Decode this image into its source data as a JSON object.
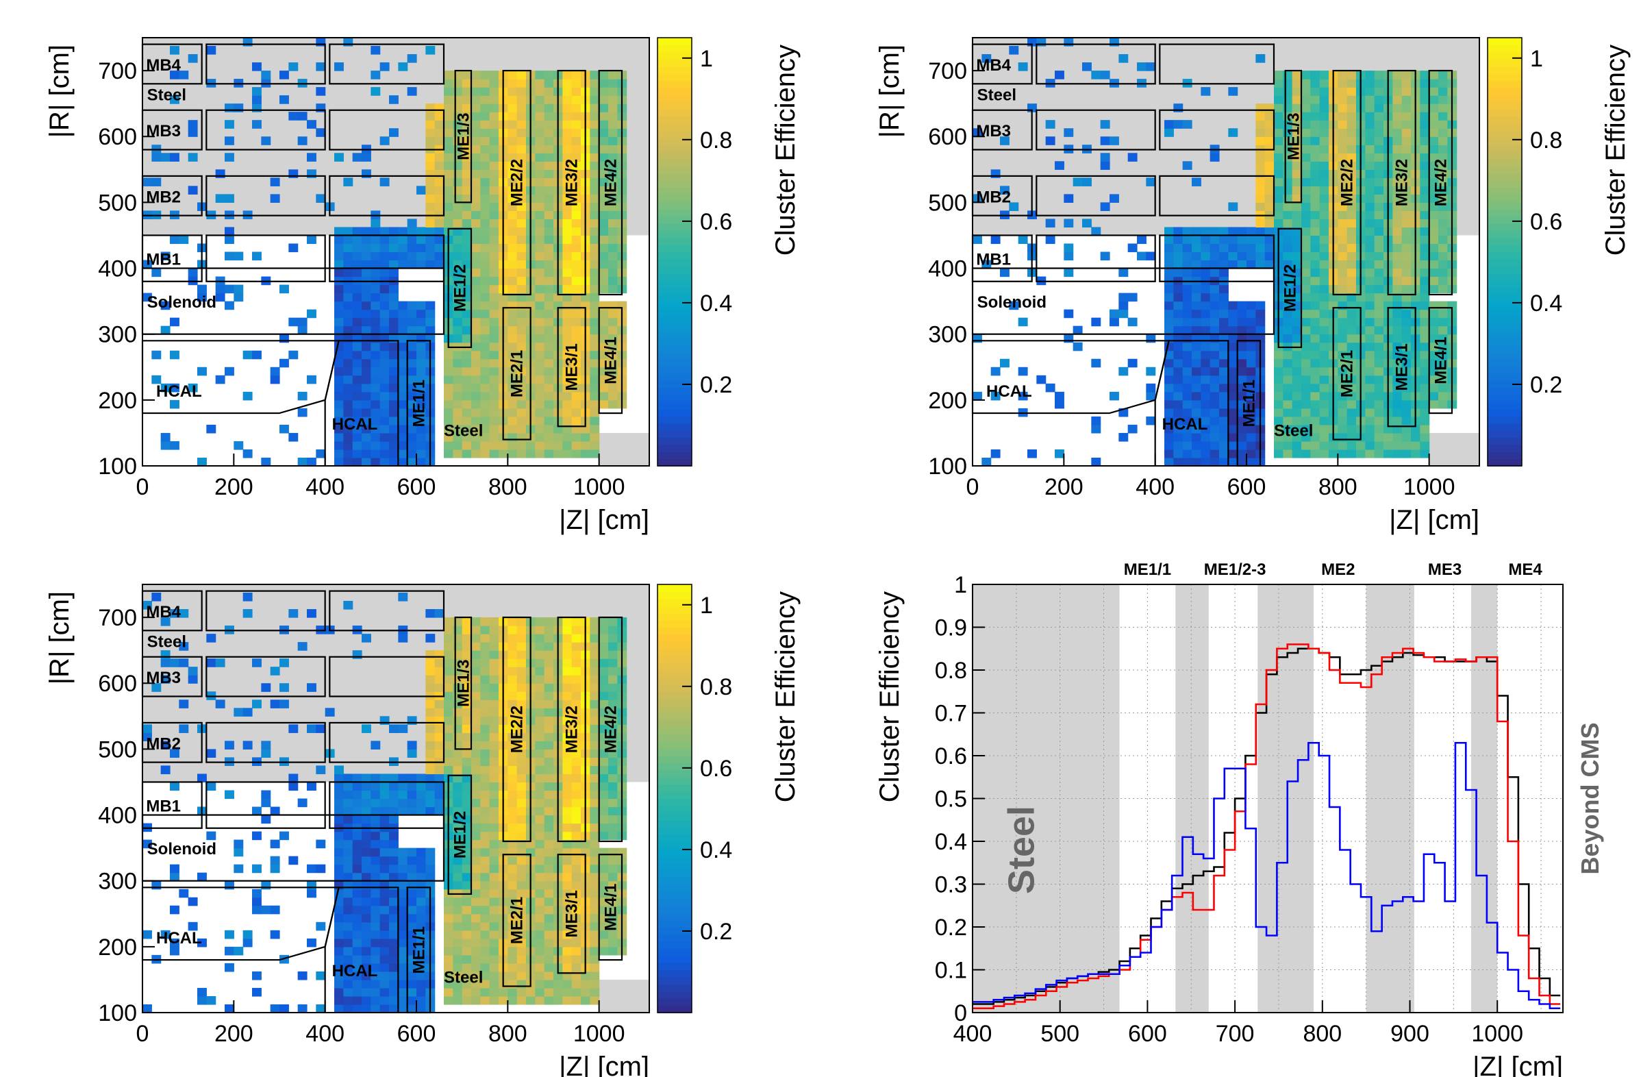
{
  "chart_data": [
    {
      "type": "heatmap",
      "xlabel": "|Z| [cm]",
      "ylabel": "|R| [cm]",
      "zlabel": "Cluster Efficiency",
      "xlim": [
        0,
        1110
      ],
      "ylim": [
        100,
        750
      ],
      "zlim": [
        0,
        1.05
      ],
      "xticks": [
        "0",
        "200",
        "400",
        "600",
        "800",
        "1000"
      ],
      "yticks": [
        "100",
        "200",
        "300",
        "400",
        "500",
        "600",
        "700"
      ],
      "zticks": [
        "0.2",
        "0.4",
        "0.6",
        "0.8",
        "1"
      ],
      "detector_labels": [
        "MB4",
        "MB3",
        "MB2",
        "MB1",
        "Steel",
        "Solenoid",
        "HCAL",
        "HCAL",
        "Steel"
      ],
      "station_labels": [
        "ME1/1",
        "ME1/2",
        "ME1/3",
        "ME2/1",
        "ME2/2",
        "ME3/1",
        "ME3/2",
        "ME4/1",
        "ME4/2"
      ],
      "efficiency_profile": {
        "ME1/1": 0.2,
        "ME1/2": 0.5,
        "ME1/3": 0.8,
        "ME2/1": 0.78,
        "ME2/2": 0.9,
        "ME3/1": 0.85,
        "ME3/2": 0.95,
        "ME4/1": 0.75,
        "ME4/2": 0.65,
        "steel": 0.7
      }
    },
    {
      "type": "heatmap",
      "xlabel": "|Z| [cm]",
      "ylabel": "|R| [cm]",
      "zlabel": "Cluster Efficiency",
      "xlim": [
        0,
        1110
      ],
      "ylim": [
        100,
        750
      ],
      "zlim": [
        0,
        1.05
      ],
      "xticks": [
        "0",
        "200",
        "400",
        "600",
        "800",
        "1000"
      ],
      "yticks": [
        "100",
        "200",
        "300",
        "400",
        "500",
        "600",
        "700"
      ],
      "zticks": [
        "0.2",
        "0.4",
        "0.6",
        "0.8",
        "1"
      ],
      "detector_labels": [
        "MB4",
        "MB3",
        "MB2",
        "MB1",
        "Steel",
        "Solenoid",
        "HCAL",
        "HCAL",
        "Steel"
      ],
      "station_labels": [
        "ME1/1",
        "ME1/2",
        "ME1/3",
        "ME2/1",
        "ME2/2",
        "ME3/1",
        "ME3/2",
        "ME4/1",
        "ME4/2"
      ],
      "efficiency_profile": {
        "ME1/1": 0.1,
        "ME1/2": 0.35,
        "ME1/3": 0.75,
        "ME2/1": 0.55,
        "ME2/2": 0.8,
        "ME3/1": 0.5,
        "ME3/2": 0.7,
        "ME4/1": 0.55,
        "ME4/2": 0.6,
        "steel": 0.55
      }
    },
    {
      "type": "heatmap",
      "xlabel": "|Z| [cm]",
      "ylabel": "|R| [cm]",
      "zlabel": "Cluster Efficiency",
      "xlim": [
        0,
        1110
      ],
      "ylim": [
        100,
        750
      ],
      "zlim": [
        0,
        1.05
      ],
      "xticks": [
        "0",
        "200",
        "400",
        "600",
        "800",
        "1000"
      ],
      "yticks": [
        "100",
        "200",
        "300",
        "400",
        "500",
        "600",
        "700"
      ],
      "zticks": [
        "0.2",
        "0.4",
        "0.6",
        "0.8",
        "1"
      ],
      "detector_labels": [
        "MB4",
        "MB3",
        "MB2",
        "MB1",
        "Steel",
        "Solenoid",
        "HCAL",
        "HCAL",
        "Steel"
      ],
      "station_labels": [
        "ME1/1",
        "ME1/2",
        "ME1/3",
        "ME2/1",
        "ME2/2",
        "ME3/1",
        "ME3/2",
        "ME4/1",
        "ME4/2"
      ],
      "efficiency_profile": {
        "ME1/1": 0.2,
        "ME1/2": 0.5,
        "ME1/3": 0.85,
        "ME2/1": 0.8,
        "ME2/2": 0.9,
        "ME3/1": 0.85,
        "ME3/2": 0.95,
        "ME4/1": 0.7,
        "ME4/2": 0.6,
        "steel": 0.72
      }
    },
    {
      "type": "line",
      "xlabel": "|Z| [cm]",
      "ylabel": "Cluster Efficiency",
      "xlim": [
        400,
        1075
      ],
      "ylim": [
        0,
        1
      ],
      "xticks": [
        "400",
        "500",
        "600",
        "700",
        "800",
        "900",
        "1000"
      ],
      "yticks": [
        "0",
        "0.1",
        "0.2",
        "0.3",
        "0.4",
        "0.5",
        "0.6",
        "0.7",
        "0.8",
        "0.9",
        "1"
      ],
      "grid": true,
      "region_labels": [
        "ME1/1",
        "ME1/2-3",
        "ME2",
        "ME3",
        "ME4"
      ],
      "annotations": [
        "Steel",
        "Beyond CMS"
      ],
      "shaded_bands": [
        [
          400,
          568
        ],
        [
          632,
          670
        ],
        [
          726,
          790
        ],
        [
          850,
          905
        ],
        [
          970,
          1000
        ]
      ],
      "x": [
        400,
        412,
        424,
        436,
        448,
        460,
        472,
        484,
        496,
        508,
        520,
        532,
        544,
        556,
        568,
        580,
        592,
        604,
        616,
        628,
        640,
        652,
        664,
        676,
        688,
        700,
        712,
        724,
        736,
        748,
        760,
        772,
        784,
        796,
        808,
        820,
        832,
        844,
        856,
        868,
        880,
        892,
        904,
        916,
        928,
        940,
        952,
        964,
        976,
        988,
        1000,
        1012,
        1024,
        1036,
        1048,
        1060
      ],
      "series": [
        {
          "color": "#000000",
          "values": [
            0.02,
            0.02,
            0.025,
            0.03,
            0.035,
            0.04,
            0.05,
            0.06,
            0.07,
            0.08,
            0.085,
            0.09,
            0.095,
            0.1,
            0.12,
            0.15,
            0.18,
            0.22,
            0.26,
            0.29,
            0.3,
            0.32,
            0.33,
            0.34,
            0.42,
            0.5,
            0.6,
            0.7,
            0.79,
            0.83,
            0.84,
            0.85,
            0.85,
            0.84,
            0.83,
            0.79,
            0.79,
            0.8,
            0.81,
            0.82,
            0.83,
            0.84,
            0.835,
            0.83,
            0.83,
            0.82,
            0.82,
            0.82,
            0.83,
            0.82,
            0.74,
            0.55,
            0.3,
            0.15,
            0.08,
            0.04
          ]
        },
        {
          "color": "#ff0000",
          "values": [
            0.01,
            0.01,
            0.015,
            0.02,
            0.025,
            0.03,
            0.04,
            0.05,
            0.06,
            0.07,
            0.075,
            0.08,
            0.085,
            0.09,
            0.1,
            0.13,
            0.17,
            0.2,
            0.24,
            0.27,
            0.28,
            0.24,
            0.24,
            0.32,
            0.38,
            0.47,
            0.58,
            0.72,
            0.8,
            0.85,
            0.86,
            0.86,
            0.85,
            0.84,
            0.8,
            0.77,
            0.77,
            0.76,
            0.79,
            0.83,
            0.84,
            0.85,
            0.84,
            0.83,
            0.82,
            0.82,
            0.825,
            0.82,
            0.83,
            0.83,
            0.68,
            0.4,
            0.18,
            0.08,
            0.04,
            0.02
          ]
        },
        {
          "color": "#0000ff",
          "values": [
            0.025,
            0.025,
            0.03,
            0.035,
            0.04,
            0.045,
            0.055,
            0.065,
            0.075,
            0.08,
            0.085,
            0.09,
            0.09,
            0.09,
            0.11,
            0.13,
            0.14,
            0.2,
            0.24,
            0.32,
            0.41,
            0.37,
            0.36,
            0.5,
            0.57,
            0.57,
            0.43,
            0.2,
            0.18,
            0.35,
            0.54,
            0.59,
            0.63,
            0.6,
            0.48,
            0.38,
            0.3,
            0.27,
            0.19,
            0.25,
            0.26,
            0.27,
            0.26,
            0.37,
            0.35,
            0.26,
            0.63,
            0.52,
            0.32,
            0.21,
            0.14,
            0.1,
            0.05,
            0.03,
            0.02,
            0.01
          ]
        }
      ]
    }
  ]
}
